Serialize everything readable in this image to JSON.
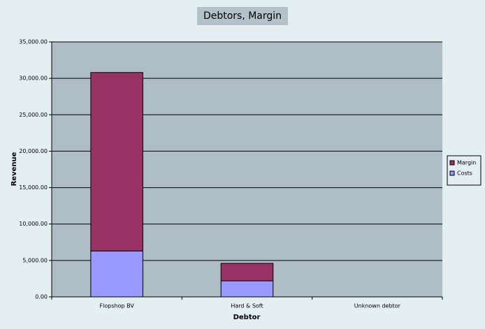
{
  "chart_data": {
    "type": "stacked_bar",
    "title": "Debtors, Margin",
    "x_label": "Debtor",
    "y_label": "Revenue",
    "categories": [
      "Flopshop BV",
      "Hard & Soft",
      "Unknown debtor"
    ],
    "series": [
      {
        "name": "Costs",
        "color": "#9999ff",
        "values": [
          6300,
          2200,
          0
        ]
      },
      {
        "name": "Margin",
        "color": "#993366",
        "values": [
          24500,
          2400,
          0
        ]
      }
    ],
    "ylim": [
      0,
      35000
    ],
    "yticks": [
      {
        "value": 0,
        "label": "0.00"
      },
      {
        "value": 5000,
        "label": "5,000.00"
      },
      {
        "value": 10000,
        "label": "10,000.00"
      },
      {
        "value": 15000,
        "label": "15,000.00"
      },
      {
        "value": 20000,
        "label": "20,000.00"
      },
      {
        "value": 25000,
        "label": "25,000.00"
      },
      {
        "value": 30000,
        "label": "30,000.00"
      },
      {
        "value": 35000,
        "label": "35,000.00"
      }
    ],
    "grid": true,
    "legend": "right"
  }
}
